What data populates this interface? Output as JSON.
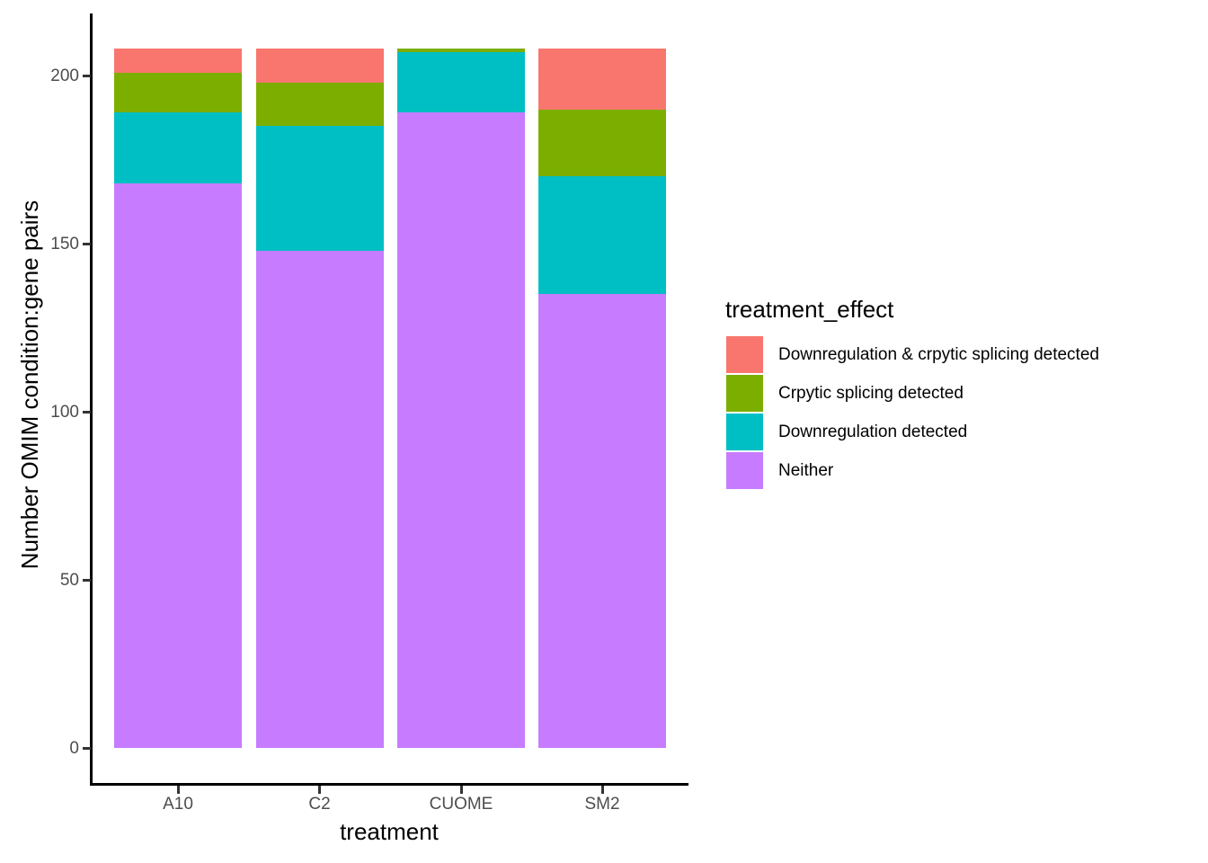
{
  "figure": {
    "background": "#FFFFFF"
  },
  "chart_data": {
    "type": "bar",
    "stacked": true,
    "title": "",
    "xlabel": "treatment",
    "ylabel": "Number OMIM condition:gene pairs",
    "categories": [
      "A10",
      "C2",
      "CUOME",
      "SM2"
    ],
    "series": [
      {
        "name": "Neither",
        "color": "#C77CFF",
        "values": [
          168,
          148,
          189,
          135
        ]
      },
      {
        "name": "Downregulation detected",
        "color": "#00BFC4",
        "values": [
          21,
          37,
          18,
          35
        ]
      },
      {
        "name": "Crpytic splicing detected",
        "color": "#7CAE00",
        "values": [
          12,
          13,
          1,
          20
        ]
      },
      {
        "name": "Downregulation & crpytic splicing detected",
        "color": "#F8766D",
        "values": [
          7,
          10,
          0,
          18
        ]
      }
    ],
    "totals": [
      208,
      208,
      208,
      208
    ],
    "ylim": [
      0,
      218
    ],
    "y_ticks": [
      0,
      50,
      100,
      150,
      200
    ],
    "grid": false,
    "legend": {
      "title": "treatment_effect",
      "position": "right",
      "entries_top_to_bottom": [
        "Downregulation & crpytic splicing detected",
        "Crpytic splicing detected",
        "Downregulation detected",
        "Neither"
      ]
    },
    "colors": {
      "axis_tick_text": "#4D4D4D",
      "axis_line": "#000000",
      "title_text": "#000000"
    }
  }
}
